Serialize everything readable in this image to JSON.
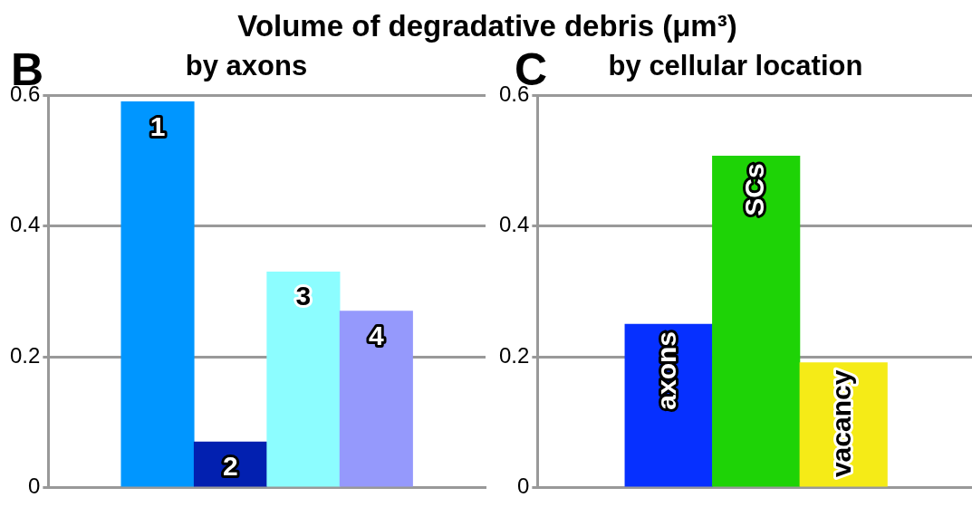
{
  "chart_data": [
    {
      "type": "bar",
      "title": "by axons",
      "annotations": [
        "Volume of degradative debris (μm³)",
        "B"
      ],
      "categories": [
        "1",
        "2",
        "3",
        "4"
      ],
      "values": [
        0.59,
        0.07,
        0.33,
        0.27
      ],
      "colors": [
        "#0096ff",
        "#0220b0",
        "#8cfdff",
        "#9599fc"
      ],
      "ylim": [
        0,
        0.6
      ],
      "yticks": [
        0,
        0.2,
        0.4,
        0.6
      ],
      "grid": "y",
      "legend": false
    },
    {
      "type": "bar",
      "title": "by cellular location",
      "annotations": [
        "C"
      ],
      "categories": [
        "axons",
        "SCs",
        "vacancy"
      ],
      "values": [
        0.25,
        0.507,
        0.191
      ],
      "colors": [
        "#0630ff",
        "#1ed306",
        "#f5eb17"
      ],
      "ylim": [
        0,
        0.6
      ],
      "yticks": [
        0,
        0.2,
        0.4,
        0.6
      ],
      "grid": "y",
      "legend": false
    }
  ]
}
